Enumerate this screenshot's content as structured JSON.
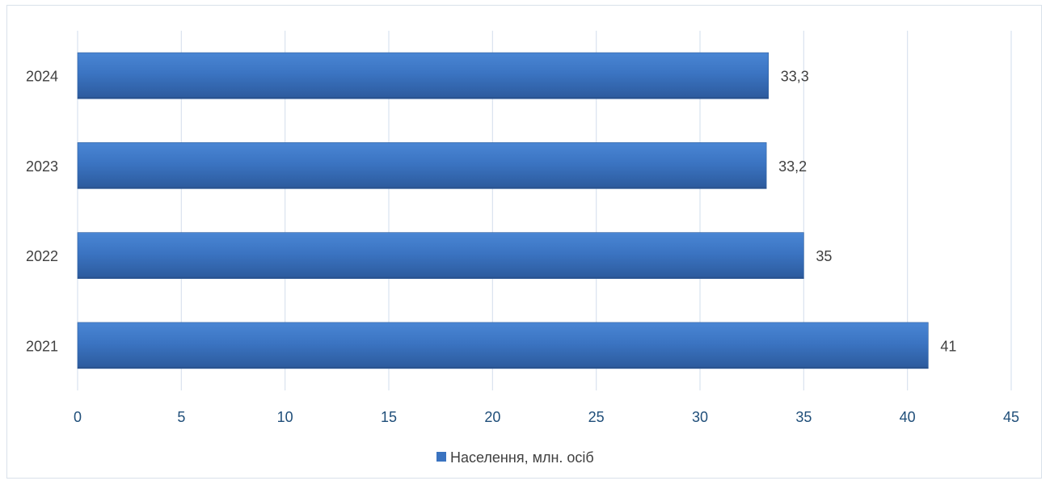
{
  "chart_data": {
    "type": "bar",
    "orientation": "horizontal",
    "categories": [
      "2021",
      "2022",
      "2023",
      "2024"
    ],
    "series": [
      {
        "name": "Населення, млн. осіб",
        "values": [
          41,
          35,
          33.2,
          33.3
        ],
        "value_labels": [
          "41",
          "35",
          "33,2",
          "33,3"
        ],
        "color": "#3a73c0"
      }
    ],
    "xlim": [
      0,
      45
    ],
    "x_ticks": [
      0,
      5,
      10,
      15,
      20,
      25,
      30,
      35,
      40,
      45
    ],
    "grid": "vertical",
    "legend": "bottom",
    "gridline_color": "#d9e3ef",
    "tick_color": "#1f4e79"
  }
}
